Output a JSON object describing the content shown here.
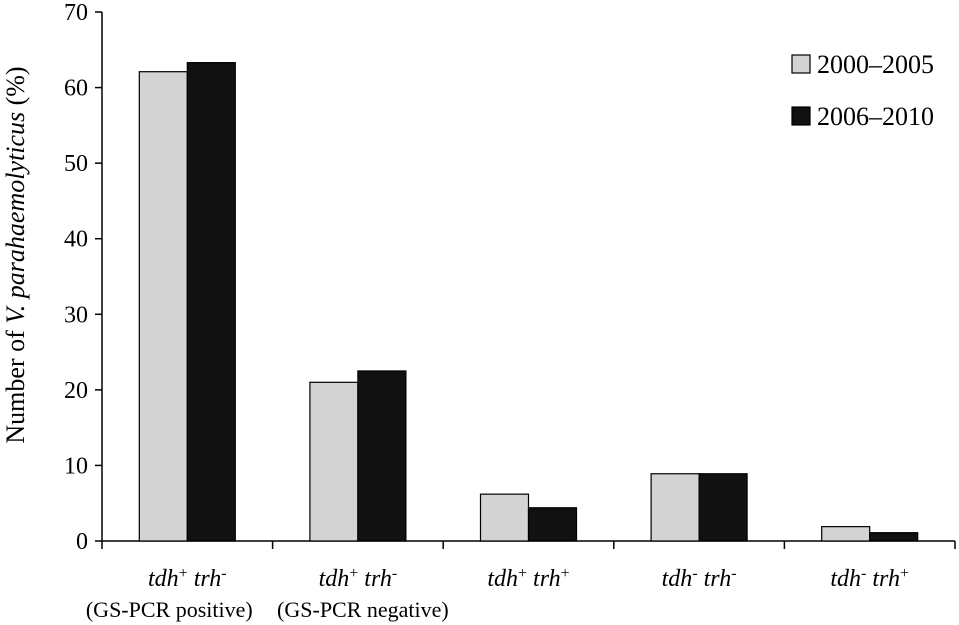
{
  "chart_data": {
    "type": "bar",
    "title": "",
    "xlabel": "",
    "ylabel_parts": [
      "Number of ",
      "V. parahaemolyticus",
      " (%)"
    ],
    "ylim": [
      0,
      70
    ],
    "yticks": [
      0,
      10,
      20,
      30,
      40,
      50,
      60,
      70
    ],
    "categories": [
      {
        "gene1": "tdh",
        "sup1": "+",
        "gene2": "trh",
        "sup2": "-",
        "sublabel": "(GS-PCR positive)"
      },
      {
        "gene1": "tdh",
        "sup1": "+",
        "gene2": "trh",
        "sup2": "-",
        "sublabel": "(GS-PCR negative)"
      },
      {
        "gene1": "tdh",
        "sup1": "+",
        "gene2": "trh",
        "sup2": "+",
        "sublabel": ""
      },
      {
        "gene1": "tdh",
        "sup1": "-",
        "gene2": "trh",
        "sup2": "-",
        "sublabel": ""
      },
      {
        "gene1": "tdh",
        "sup1": "-",
        "gene2": "trh",
        "sup2": "+",
        "sublabel": ""
      }
    ],
    "series": [
      {
        "name": "2000–2005",
        "color": "#d3d3d3",
        "values": [
          62.1,
          21.0,
          6.2,
          8.9,
          1.9
        ]
      },
      {
        "name": "2006–2010",
        "color": "#111111",
        "values": [
          63.3,
          22.5,
          4.4,
          8.9,
          1.1
        ]
      }
    ],
    "legend_position": "top-right",
    "grid": false
  }
}
